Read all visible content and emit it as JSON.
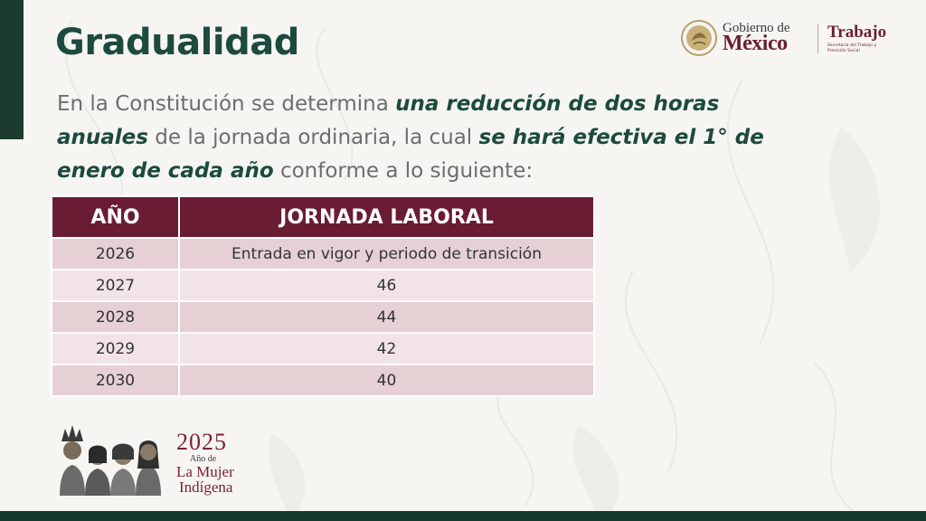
{
  "title": "Gradualidad",
  "lead": {
    "p1": "En la Constitución se determina ",
    "e1": "una reducción de dos horas anuales",
    "p2": " de la jornada ordinaria, la cual ",
    "e2": "se hará efectiva el 1° de enero de cada año",
    "p3": " conforme a lo siguiente:"
  },
  "logo": {
    "gobierno": "Gobierno de",
    "mexico": "México",
    "trabajo": "Trabajo",
    "secretaria": "Secretaría del Trabajo y Previsión Social"
  },
  "table": {
    "headers": [
      "AÑO",
      "JORNADA LABORAL"
    ],
    "rows": [
      [
        "2026",
        "Entrada en vigor y periodo de transición"
      ],
      [
        "2027",
        "46"
      ],
      [
        "2028",
        "44"
      ],
      [
        "2029",
        "42"
      ],
      [
        "2030",
        "40"
      ]
    ]
  },
  "badge": {
    "year": "2025",
    "anio_de": "Año de",
    "mujer": "La Mujer",
    "indigena": "Indígena"
  },
  "colors": {
    "green": "#1c4a3e",
    "maroon": "#6a1c33",
    "row_dark": "#e6d0d4",
    "row_light": "#f2e4e6"
  }
}
